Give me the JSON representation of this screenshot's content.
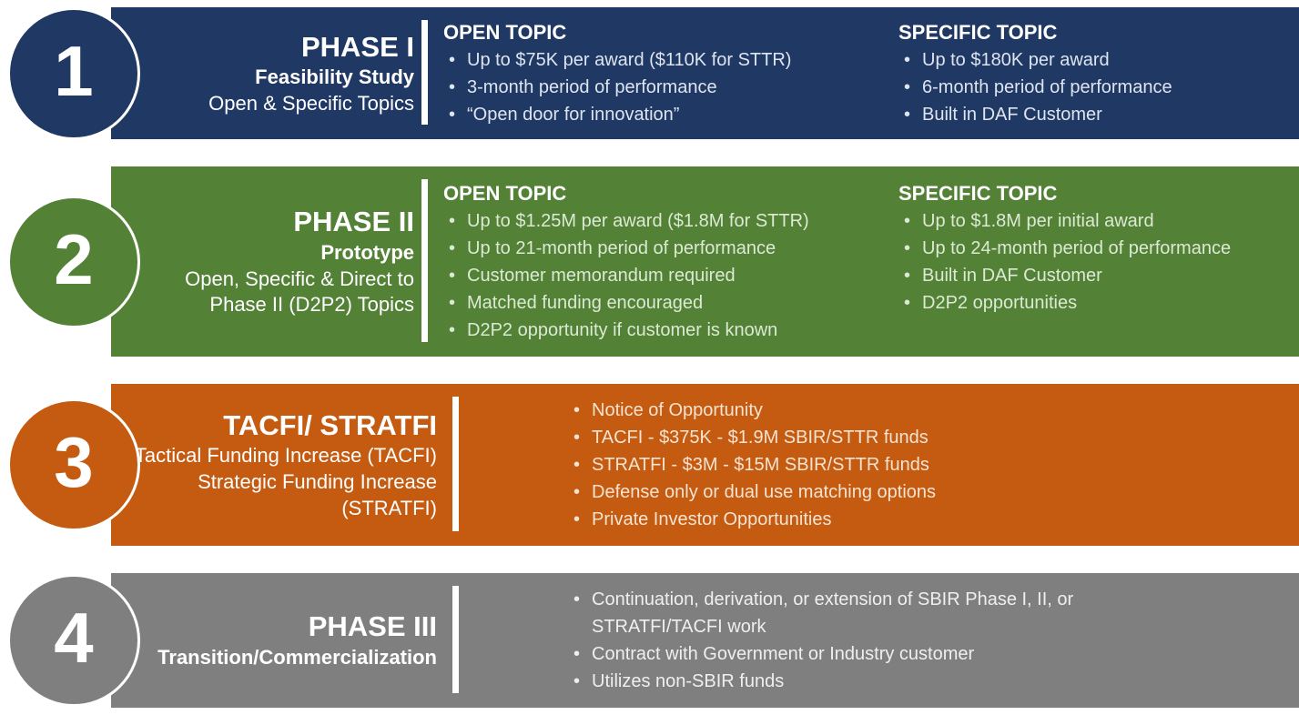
{
  "page": {
    "background": "#FFFFFF",
    "divider_color": "#FFFFFF"
  },
  "bands": [
    {
      "number": "1",
      "color": "#1F3864",
      "text_tint": "#DEE5F0",
      "title": "PHASE I",
      "subtitle_bold": "Feasibility Study",
      "subtitle_lines": [
        "Open & Specific Topics"
      ],
      "columns": [
        {
          "header": "OPEN TOPIC",
          "bullets": [
            "Up to $75K per award ($110K for STTR)",
            "3-month period of performance",
            "“Open door for innovation”"
          ]
        },
        {
          "header": "SPECIFIC TOPIC",
          "bullets": [
            "Up to $180K per award",
            "6-month period of performance",
            "Built in DAF Customer"
          ]
        }
      ]
    },
    {
      "number": "2",
      "color": "#538135",
      "text_tint": "#DCEAD5",
      "title": "PHASE II",
      "subtitle_bold": "Prototype",
      "subtitle_lines": [
        "Open, Specific & Direct to",
        "Phase II (D2P2) Topics"
      ],
      "columns": [
        {
          "header": "OPEN TOPIC",
          "bullets": [
            "Up to $1.25M per award ($1.8M for STTR)",
            "Up to 21-month period of performance",
            "Customer memorandum required",
            "Matched funding encouraged",
            "D2P2 opportunity if customer is known"
          ]
        },
        {
          "header": "SPECIFIC TOPIC",
          "bullets": [
            "Up to $1.8M per initial award",
            "Up to 24-month period of performance",
            "Built in DAF Customer",
            "D2P2 opportunities"
          ]
        }
      ]
    },
    {
      "number": "3",
      "color": "#C55A11",
      "text_tint": "#F6E4D2",
      "title": "TACFI/ STRATFI",
      "subtitle_bold": null,
      "subtitle_lines": [
        "Tactical Funding Increase (TACFI)",
        "Strategic Funding Increase (STRATFI)"
      ],
      "columns": [
        {
          "header": null,
          "bullets": [
            "Notice of Opportunity",
            "TACFI - $375K - $1.9M SBIR/STTR funds",
            "STRATFI - $3M - $15M SBIR/STTR funds",
            "Defense only or dual use matching options",
            "Private Investor Opportunities"
          ]
        }
      ]
    },
    {
      "number": "4",
      "color": "#7F7F7F",
      "text_tint": "#EFEFEF",
      "title": "PHASE III",
      "subtitle_bold": "Transition/Commercialization",
      "subtitle_lines": [],
      "columns": [
        {
          "header": null,
          "bullets": [
            "Continuation, derivation, or extension of SBIR Phase I, II, or STRATFI/TACFI work",
            "Contract with Government or Industry customer",
            "Utilizes non-SBIR funds"
          ]
        }
      ]
    }
  ]
}
